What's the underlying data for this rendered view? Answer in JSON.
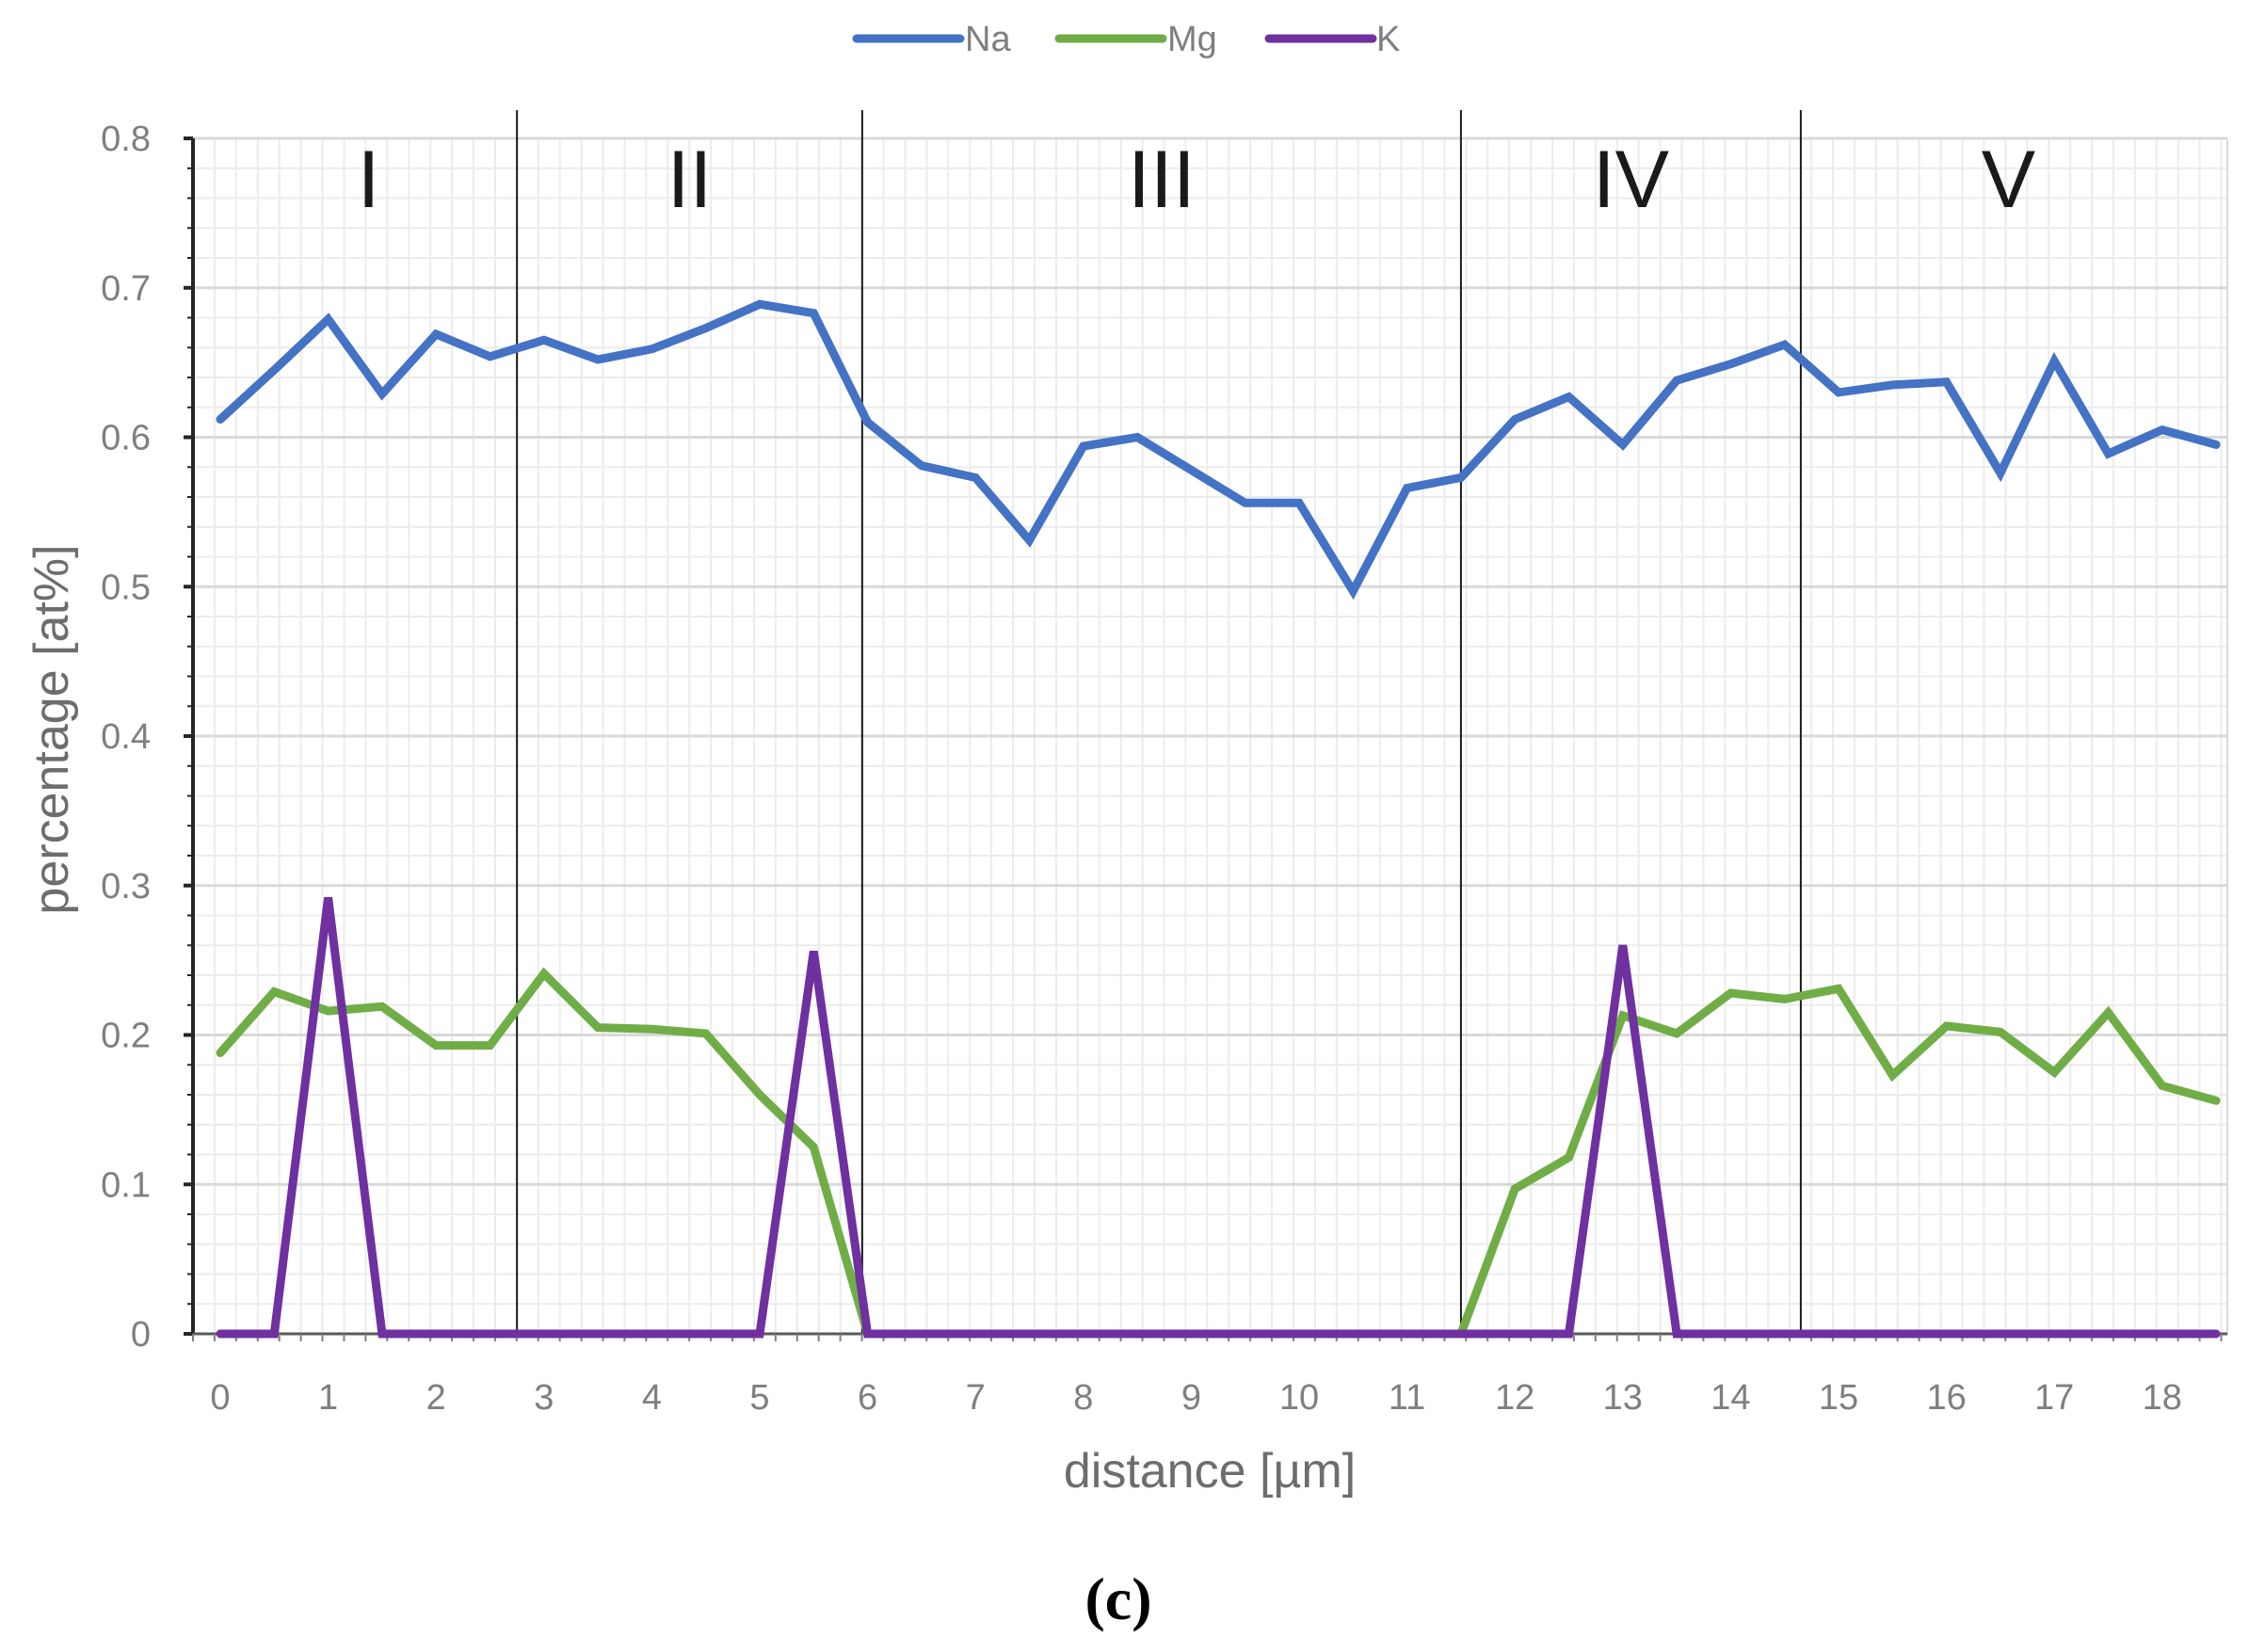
{
  "chart_data": {
    "type": "line",
    "title": "",
    "xlabel": "distance [µm]",
    "ylabel": "percentage [at%]",
    "xlim": [
      0,
      18.5
    ],
    "ylim": [
      0,
      0.8
    ],
    "x_ticks": [
      0,
      1,
      2,
      3,
      4,
      5,
      6,
      7,
      8,
      9,
      10,
      11,
      12,
      13,
      14,
      15,
      16,
      17,
      18
    ],
    "y_ticks": [
      0,
      0.1,
      0.2,
      0.3,
      0.4,
      0.5,
      0.6,
      0.7,
      0.8
    ],
    "y_tick_labels": [
      "0",
      "0.1",
      "0.2",
      "0.3",
      "0.4",
      "0.5",
      "0.6",
      "0.7",
      "0.8"
    ],
    "grid": true,
    "legend_position": "top-center",
    "x": [
      0,
      0.5,
      1,
      1.5,
      2,
      2.5,
      3,
      3.5,
      4,
      4.5,
      5,
      5.5,
      6,
      6.5,
      7,
      7.5,
      8,
      8.5,
      9,
      9.5,
      10,
      10.5,
      11,
      11.5,
      12,
      12.5,
      13,
      13.5,
      14,
      14.5,
      15,
      15.5,
      16,
      16.5,
      17,
      17.5,
      18,
      18.5
    ],
    "series": [
      {
        "name": "Na",
        "color": "#4472c4",
        "values": [
          0.612,
          0.645,
          0.679,
          0.629,
          0.669,
          0.654,
          0.665,
          0.652,
          0.659,
          0.673,
          0.689,
          0.683,
          0.61,
          0.581,
          0.573,
          0.531,
          0.594,
          0.6,
          0.578,
          0.556,
          0.556,
          0.497,
          0.566,
          0.573,
          0.612,
          0.627,
          0.595,
          0.638,
          0.649,
          0.662,
          0.63,
          0.635,
          0.637,
          0.576,
          0.651,
          0.589,
          0.605,
          0.595
        ]
      },
      {
        "name": "Mg",
        "color": "#70ad47",
        "values": [
          0.188,
          0.229,
          0.216,
          0.219,
          0.193,
          0.193,
          0.241,
          0.205,
          0.204,
          0.201,
          0.16,
          0.125,
          0,
          0,
          0,
          0,
          0,
          0,
          0,
          0,
          0,
          0,
          0,
          0,
          0.097,
          0.118,
          0.213,
          0.201,
          0.228,
          0.224,
          0.231,
          0.173,
          0.206,
          0.202,
          0.175,
          0.215,
          0.166,
          0.156
        ]
      },
      {
        "name": "K",
        "color": "#7030a0",
        "values": [
          0,
          0,
          0.292,
          0,
          0,
          0,
          0,
          0,
          0,
          0,
          0,
          0.256,
          0,
          0,
          0,
          0,
          0,
          0,
          0,
          0,
          0,
          0,
          0,
          0,
          0,
          0,
          0.26,
          0,
          0,
          0,
          0,
          0,
          0,
          0,
          0,
          0,
          0,
          0
        ]
      }
    ],
    "regions": [
      {
        "label": "I",
        "start": 0,
        "end": 2.75
      },
      {
        "label": "II",
        "start": 2.75,
        "end": 5.95
      },
      {
        "label": "III",
        "start": 5.95,
        "end": 11.5
      },
      {
        "label": "IV",
        "start": 11.5,
        "end": 14.65
      },
      {
        "label": "V",
        "start": 14.65,
        "end": 18.5
      }
    ],
    "region_boundaries": [
      2.75,
      5.95,
      11.5,
      14.65
    ]
  },
  "caption": "(c)"
}
